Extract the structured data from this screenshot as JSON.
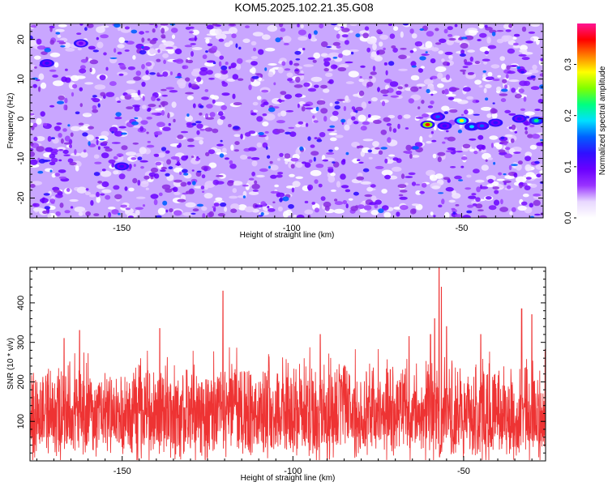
{
  "figure": {
    "title": "KOM5.2025.102.21.35.G08"
  },
  "chart_data": [
    {
      "type": "heatmap",
      "xlabel": "Height of straight line (km)",
      "ylabel": "Frequency (Hz)",
      "xlim": [
        -177,
        -26
      ],
      "ylim": [
        -25,
        24
      ],
      "xticks": [
        -150,
        -100,
        -50
      ],
      "yticks": [
        -20,
        -10,
        0,
        10,
        20
      ],
      "grid": false,
      "colorbar": {
        "label": "Normalized spectral amplitude",
        "range": [
          0.0,
          0.38
        ],
        "ticks": [
          "0.0",
          "0.1",
          "0.2",
          "0.3"
        ],
        "tick_values": [
          0.0,
          0.1,
          0.2,
          0.3
        ],
        "colors": [
          "#ffffff",
          "#e8d8ff",
          "#9933ff",
          "#6a00ff",
          "#3010ff",
          "#0060ff",
          "#00e0ff",
          "#00ff80",
          "#80ff00",
          "#ffff00",
          "#ff8000",
          "#ff0000",
          "#ff1493"
        ]
      },
      "hotspots": [
        {
          "x": -60,
          "y": -1.5,
          "v": 0.36
        },
        {
          "x": -57,
          "y": 0.5,
          "v": 0.15
        },
        {
          "x": -55,
          "y": -1.8,
          "v": 0.13
        },
        {
          "x": -50,
          "y": -0.5,
          "v": 0.28
        },
        {
          "x": -47,
          "y": -2.0,
          "v": 0.2
        },
        {
          "x": -44,
          "y": -1.8,
          "v": 0.15
        },
        {
          "x": -40,
          "y": -1.0,
          "v": 0.12
        },
        {
          "x": -33,
          "y": 0.0,
          "v": 0.13
        },
        {
          "x": -28,
          "y": -0.5,
          "v": 0.22
        },
        {
          "x": -150,
          "y": -12,
          "v": 0.12
        },
        {
          "x": -172,
          "y": 14,
          "v": 0.12
        },
        {
          "x": -162,
          "y": 19,
          "v": 0.1
        }
      ]
    },
    {
      "type": "line",
      "xlabel": "Height of straight line (km)",
      "ylabel": "SNR (10 * v/v)",
      "xlim": [
        -177,
        -26
      ],
      "ylim": [
        0,
        490
      ],
      "xticks": [
        -150,
        -100,
        -50
      ],
      "yticks": [
        100,
        200,
        300,
        400
      ],
      "grid": false,
      "color": "#ee3333",
      "series": [
        {
          "peaks": [
            {
              "x": -120.5,
              "y": 430
            },
            {
              "x": -57.2,
              "y": 490
            },
            {
              "x": -56.5,
              "y": 440
            },
            {
              "x": -58.5,
              "y": 360
            },
            {
              "x": -55,
              "y": 340
            },
            {
              "x": -59.7,
              "y": 320
            },
            {
              "x": -139,
              "y": 335
            },
            {
              "x": -162.5,
              "y": 330
            },
            {
              "x": -33,
              "y": 385
            },
            {
              "x": -30,
              "y": 370
            },
            {
              "x": -167,
              "y": 310
            },
            {
              "x": -92,
              "y": 320
            },
            {
              "x": -66,
              "y": 315
            },
            {
              "x": -45,
              "y": 320
            }
          ],
          "baseline_mean": 120,
          "typical_max": 260,
          "dip": {
            "x": -56.8,
            "y": 5
          }
        }
      ]
    }
  ]
}
